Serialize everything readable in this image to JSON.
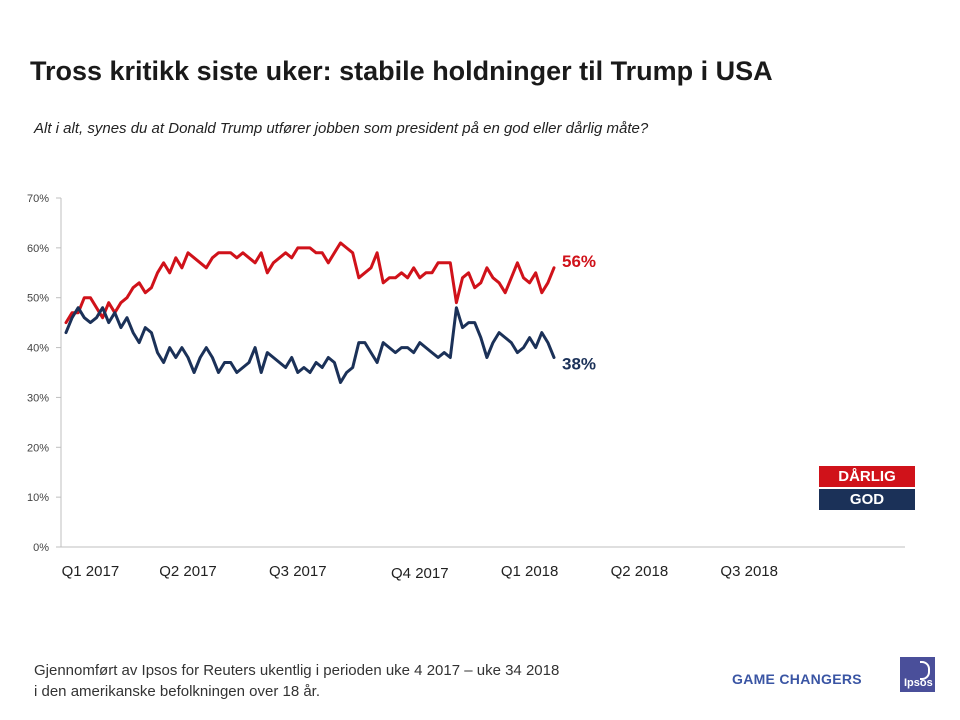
{
  "header": {
    "title": "Tross kritikk siste uker: stabile holdninger til Trump i USA",
    "subtitle": "Alt i alt, synes du at Donald Trump utfører jobben som president på en god eller dårlig måte?"
  },
  "legend": {
    "darlig": "DÅRLIG",
    "god": "GOD"
  },
  "footer": {
    "line1": "Gjennomført av Ipsos for Reuters ukentlig i perioden uke 4 2017 – uke 34 2018",
    "line2": "i den amerikanske befolkningen over 18 år.",
    "brand": "GAME CHANGERS",
    "logo_text": "Ipsos"
  },
  "colors": {
    "darlig": "#d0121a",
    "god": "#1b3158",
    "axis": "#bfbfbf"
  },
  "chart_data": {
    "type": "line",
    "title": "Tross kritikk siste uker: stabile holdninger til Trump i USA",
    "xlabel": "",
    "ylabel": "",
    "ylim": [
      0,
      70
    ],
    "y_ticks": [
      0,
      10,
      20,
      30,
      40,
      50,
      60,
      70
    ],
    "y_tick_labels": [
      "0%",
      "10%",
      "20%",
      "30%",
      "40%",
      "50%",
      "60%",
      "70%"
    ],
    "x_tick_labels": [
      {
        "label": "Q1 2017",
        "week": 4
      },
      {
        "label": "Q2 2017",
        "week": 20
      },
      {
        "label": "Q3 2017",
        "week": 38
      },
      {
        "label": "Q4 2017",
        "week": 58
      },
      {
        "label": "Q1 2018",
        "week": 76
      },
      {
        "label": "Q2 2018",
        "week": 94
      },
      {
        "label": "Q3 2018",
        "week": 112
      }
    ],
    "end_labels": {
      "darlig": "56%",
      "god": "38%"
    },
    "series": [
      {
        "name": "DÅRLIG",
        "key": "darlig",
        "values": [
          45,
          47,
          47,
          50,
          50,
          48,
          46,
          49,
          47,
          49,
          50,
          52,
          53,
          51,
          52,
          55,
          57,
          55,
          58,
          56,
          59,
          58,
          57,
          56,
          58,
          59,
          59,
          59,
          58,
          59,
          58,
          57,
          59,
          55,
          57,
          58,
          59,
          58,
          60,
          60,
          60,
          59,
          59,
          57,
          59,
          61,
          60,
          59,
          54,
          55,
          56,
          59,
          53,
          54,
          54,
          55,
          54,
          56,
          54,
          55,
          55,
          57,
          57,
          57,
          49,
          54,
          55,
          52,
          53,
          56,
          54,
          53,
          51,
          54,
          57,
          54,
          53,
          55,
          51,
          53,
          56
        ]
      },
      {
        "name": "GOD",
        "key": "god",
        "values": [
          43,
          46,
          48,
          46,
          45,
          46,
          48,
          45,
          47,
          44,
          46,
          43,
          41,
          44,
          43,
          39,
          37,
          40,
          38,
          40,
          38,
          35,
          38,
          40,
          38,
          35,
          37,
          37,
          35,
          36,
          37,
          40,
          35,
          39,
          38,
          37,
          36,
          38,
          35,
          36,
          35,
          37,
          36,
          38,
          37,
          33,
          35,
          36,
          41,
          41,
          39,
          37,
          41,
          40,
          39,
          40,
          40,
          39,
          41,
          40,
          39,
          38,
          39,
          38,
          48,
          44,
          45,
          45,
          42,
          38,
          41,
          43,
          42,
          41,
          39,
          40,
          42,
          40,
          43,
          41,
          38
        ]
      }
    ]
  }
}
